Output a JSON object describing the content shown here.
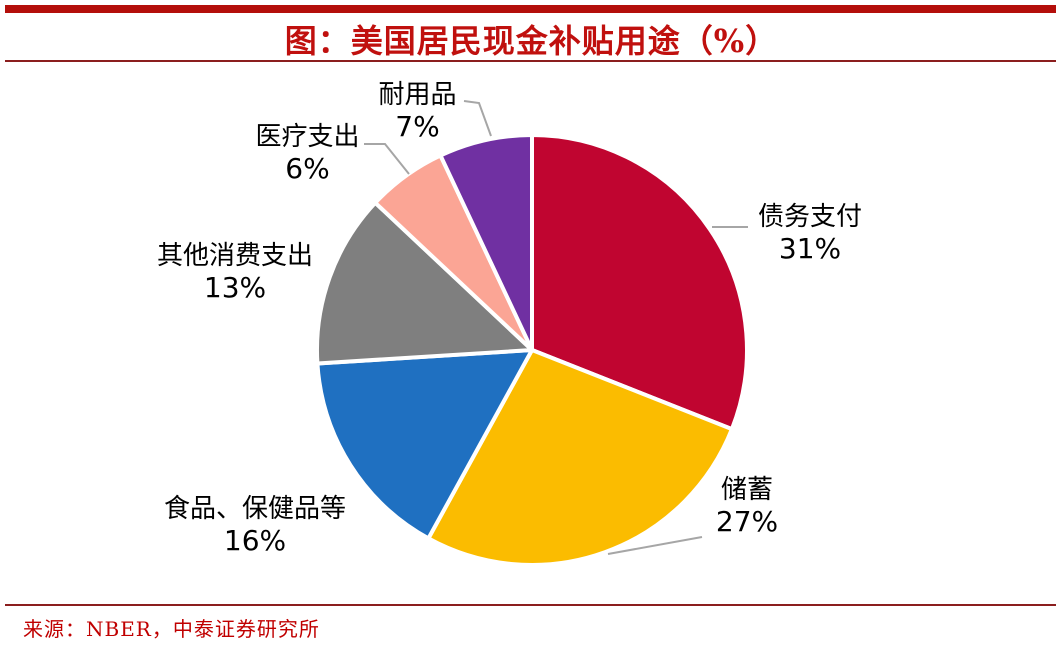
{
  "header": {
    "title": "图：美国居民现金补贴用途（%）"
  },
  "footer": {
    "source": "来源：NBER，中泰证券研究所"
  },
  "colors": {
    "top_bar": "#B40F0B",
    "divider": "#8B1E1E",
    "title_text": "#C0100E",
    "source_text": "#C00000",
    "leader_line": "#A6A6A6",
    "label_text": "#000000",
    "slice_border": "#FFFFFF",
    "background": "#FFFFFF"
  },
  "chart_data": {
    "type": "pie",
    "title": "图：美国居民现金补贴用途（%）",
    "unit": "%",
    "start_angle_deg": 0,
    "direction": "clockwise",
    "legend": "none",
    "slices": [
      {
        "id": "debt-payment",
        "label": "债务支付",
        "value": 31,
        "pct_label": "31%",
        "color": "#C00530"
      },
      {
        "id": "savings",
        "label": "储蓄",
        "value": 27,
        "pct_label": "27%",
        "color": "#FBBC00"
      },
      {
        "id": "food-healthcare",
        "label": "食品、保健品等",
        "value": 16,
        "pct_label": "16%",
        "color": "#1F70C1"
      },
      {
        "id": "other-consumption",
        "label": "其他消费支出",
        "value": 13,
        "pct_label": "13%",
        "color": "#7F7F7F"
      },
      {
        "id": "medical-spending",
        "label": "医疗支出",
        "value": 6,
        "pct_label": "6%",
        "color": "#FBA595"
      },
      {
        "id": "durable-goods",
        "label": "耐用品",
        "value": 7,
        "pct_label": "7%",
        "color": "#7030A2"
      }
    ]
  }
}
